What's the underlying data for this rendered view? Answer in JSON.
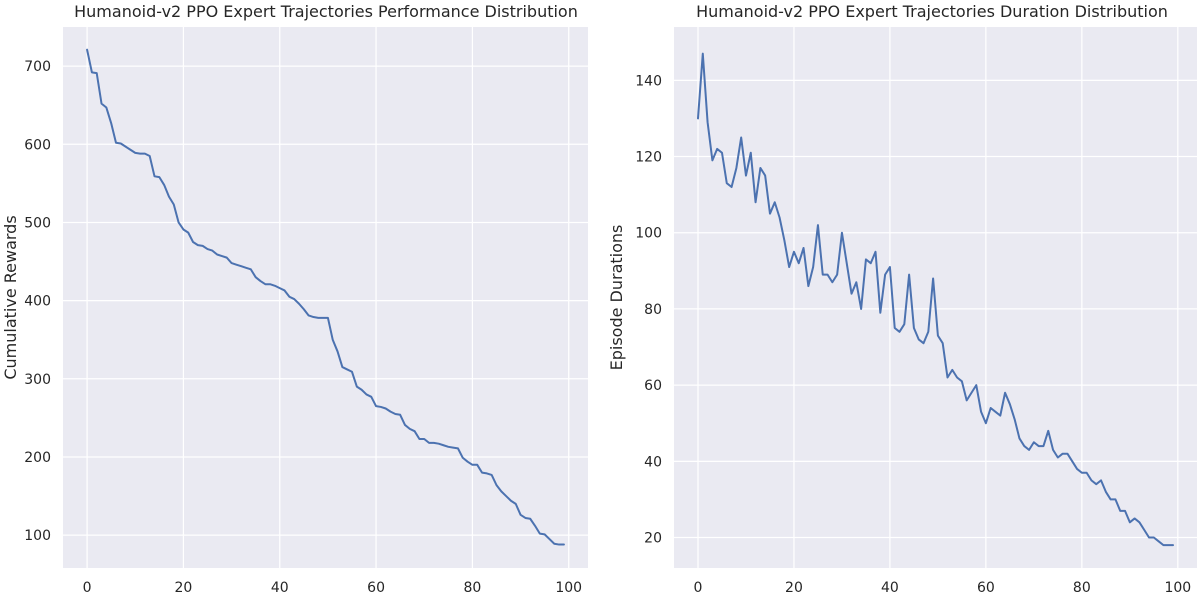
{
  "chart_data": [
    {
      "type": "line",
      "title": "Humanoid-v2 PPO Expert Trajectories Performance Distribution",
      "xlabel": "",
      "ylabel": "Cumulative Rewards",
      "xlim": [
        -5,
        104
      ],
      "ylim": [
        58,
        750
      ],
      "xticks": [
        0,
        20,
        40,
        60,
        80,
        100
      ],
      "yticks": [
        100,
        200,
        300,
        400,
        500,
        600,
        700
      ],
      "grid": true,
      "series": [
        {
          "color": "#4c72b0",
          "values": [
            721,
            692,
            691,
            652,
            647,
            627,
            602,
            601,
            597,
            593,
            589,
            588,
            588,
            585,
            559,
            558,
            548,
            533,
            523,
            500,
            491,
            487,
            475,
            471,
            470,
            466,
            464,
            459,
            457,
            455,
            448,
            446,
            444,
            442,
            440,
            430,
            425,
            421,
            421,
            419,
            416,
            413,
            405,
            402,
            396,
            389,
            381,
            379,
            378,
            378,
            378,
            350,
            335,
            315,
            312,
            309,
            290,
            286,
            280,
            277,
            265,
            264,
            262,
            258,
            255,
            254,
            241,
            236,
            233,
            223,
            223,
            218,
            218,
            217,
            215,
            213,
            212,
            211,
            199,
            194,
            190,
            190,
            180,
            179,
            177,
            164,
            156,
            150,
            144,
            140,
            126,
            122,
            121,
            112,
            102,
            101,
            95,
            89,
            88,
            88
          ]
        }
      ]
    },
    {
      "type": "line",
      "title": "Humanoid-v2 PPO Expert Trajectories Duration Distribution",
      "xlabel": "",
      "ylabel": "Episode Durations",
      "xlim": [
        -5,
        104
      ],
      "ylim": [
        12,
        154
      ],
      "xticks": [
        0,
        20,
        40,
        60,
        80,
        100
      ],
      "yticks": [
        20,
        40,
        60,
        80,
        100,
        120,
        140
      ],
      "grid": true,
      "series": [
        {
          "color": "#4c72b0",
          "values": [
            130,
            147,
            129,
            119,
            122,
            121,
            113,
            112,
            117,
            125,
            115,
            121,
            108,
            117,
            115,
            105,
            108,
            104,
            98,
            91,
            95,
            92,
            96,
            86,
            91,
            102,
            89,
            89,
            87,
            89,
            100,
            92,
            84,
            87,
            80,
            93,
            92,
            95,
            79,
            89,
            91,
            75,
            74,
            76,
            89,
            75,
            72,
            71,
            74,
            88,
            73,
            71,
            62,
            64,
            62,
            61,
            56,
            58,
            60,
            53,
            50,
            54,
            53,
            52,
            58,
            55,
            51,
            46,
            44,
            43,
            45,
            44,
            44,
            48,
            43,
            41,
            42,
            42,
            40,
            38,
            37,
            37,
            35,
            34,
            35,
            32,
            30,
            30,
            27,
            27,
            24,
            25,
            24,
            22,
            20,
            20,
            19,
            18,
            18,
            18
          ]
        }
      ]
    }
  ]
}
